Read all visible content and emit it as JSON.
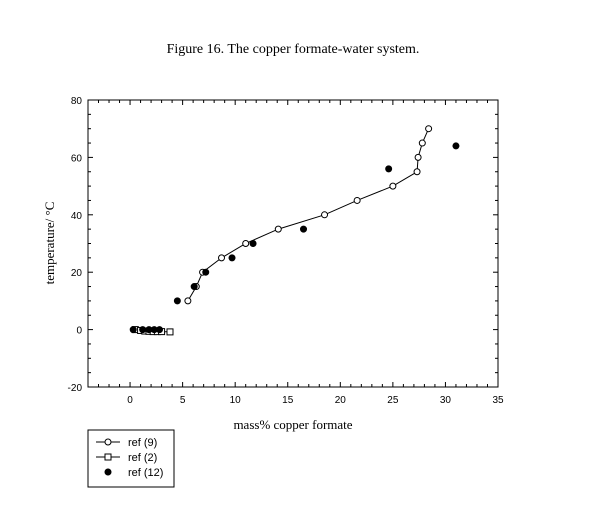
{
  "chart_data": {
    "type": "scatter",
    "title": "Figure 16. The copper formate-water system.",
    "xlabel": "mass% copper formate",
    "ylabel": "temperature/ °C",
    "xlim": [
      -4,
      35
    ],
    "ylim": [
      -20,
      80
    ],
    "x_ticks": [
      0,
      5,
      10,
      15,
      20,
      25,
      30,
      35
    ],
    "y_ticks": [
      -20,
      0,
      20,
      40,
      60,
      80
    ],
    "x_tick_labels": [
      "0",
      "5",
      "10",
      "15",
      "20",
      "25",
      "30",
      "35"
    ],
    "y_tick_labels": [
      "-20",
      "0",
      "20",
      "40",
      "60",
      "80"
    ],
    "grid": false,
    "legend_position": "below-left",
    "series": [
      {
        "name": "ref (9)",
        "marker": "open-circle",
        "line": true,
        "points": [
          [
            5.5,
            10
          ],
          [
            6.3,
            15
          ],
          [
            6.9,
            20
          ],
          [
            8.7,
            25
          ],
          [
            11.0,
            30
          ],
          [
            14.1,
            35
          ],
          [
            18.5,
            40
          ],
          [
            21.6,
            45
          ],
          [
            25.0,
            50
          ],
          [
            27.3,
            55
          ],
          [
            27.4,
            60
          ],
          [
            27.8,
            65
          ],
          [
            28.4,
            70
          ]
        ]
      },
      {
        "name": "ref (2)",
        "marker": "open-square",
        "line": true,
        "points": [
          [
            0.5,
            0
          ],
          [
            1.0,
            -0.3
          ],
          [
            1.4,
            -0.5
          ],
          [
            1.8,
            -0.6
          ],
          [
            2.2,
            -0.7
          ],
          [
            2.6,
            -0.7
          ],
          [
            3.0,
            -0.7
          ],
          [
            3.8,
            -0.8
          ]
        ]
      },
      {
        "name": "ref (12)",
        "marker": "filled-circle",
        "line": false,
        "points": [
          [
            0.3,
            0
          ],
          [
            1.2,
            0
          ],
          [
            1.8,
            0
          ],
          [
            2.3,
            0
          ],
          [
            2.8,
            0
          ],
          [
            4.5,
            10
          ],
          [
            6.1,
            15
          ],
          [
            7.2,
            20
          ],
          [
            9.7,
            25
          ],
          [
            11.7,
            30
          ],
          [
            16.5,
            35
          ],
          [
            24.6,
            56
          ],
          [
            31.0,
            64
          ]
        ]
      }
    ]
  }
}
